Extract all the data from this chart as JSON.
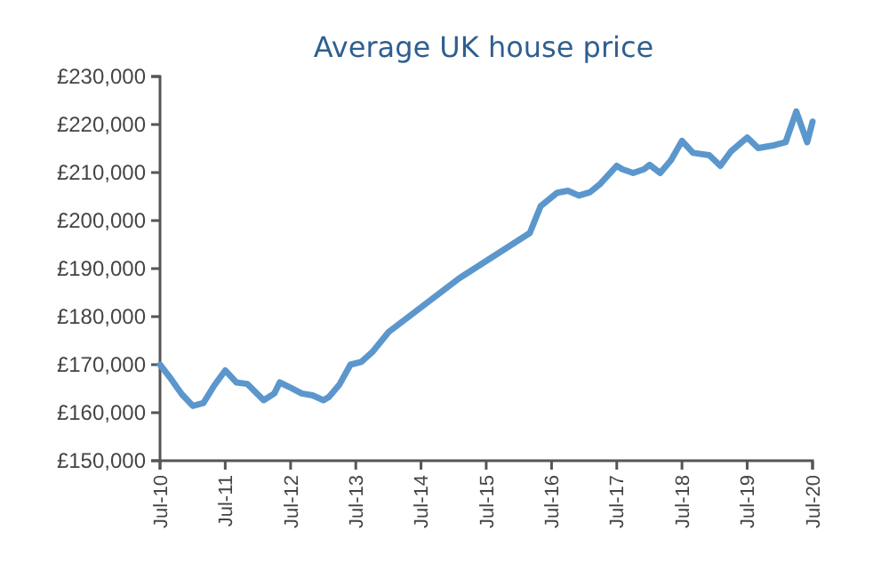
{
  "chart_data": {
    "type": "line",
    "title": "Average UK house price",
    "x": [
      "2010-07",
      "2010-09",
      "2010-11",
      "2011-01",
      "2011-03",
      "2011-05",
      "2011-07",
      "2011-09",
      "2011-11",
      "2012-02",
      "2012-04",
      "2012-05",
      "2012-07",
      "2012-09",
      "2012-11",
      "2013-01",
      "2013-02",
      "2013-04",
      "2013-06",
      "2013-08",
      "2013-10",
      "2014-01",
      "2015-02",
      "2016-03",
      "2016-05",
      "2016-08",
      "2016-10",
      "2016-12",
      "2017-02",
      "2017-04",
      "2017-07",
      "2017-08",
      "2017-10",
      "2017-12",
      "2018-01",
      "2018-03",
      "2018-05",
      "2018-07",
      "2018-09",
      "2018-12",
      "2019-02",
      "2019-04",
      "2019-07",
      "2019-09",
      "2019-12",
      "2020-02",
      "2020-04",
      "2020-06",
      "2020-07"
    ],
    "series": [
      {
        "color": "#5b97cc",
        "values": [
          170000,
          167000,
          163800,
          161400,
          162000,
          165700,
          168800,
          166300,
          166000,
          162600,
          164000,
          166300,
          165200,
          164000,
          163600,
          162600,
          163300,
          165900,
          170000,
          170600,
          172600,
          176800,
          188000,
          197400,
          203000,
          205800,
          206200,
          205200,
          205900,
          207700,
          211400,
          210700,
          209900,
          210700,
          211600,
          209900,
          212600,
          216600,
          214100,
          213600,
          211400,
          214400,
          217300,
          215100,
          215700,
          216300,
          222700,
          216300,
          220600
        ]
      }
    ],
    "xlim": [
      "2010-07",
      "2020-07"
    ],
    "xticks": [
      {
        "value": "2010-07",
        "label": "Jul-10"
      },
      {
        "value": "2011-07",
        "label": "Jul-11"
      },
      {
        "value": "2012-07",
        "label": "Jul-12"
      },
      {
        "value": "2013-07",
        "label": "Jul-13"
      },
      {
        "value": "2014-07",
        "label": "Jul-14"
      },
      {
        "value": "2015-07",
        "label": "Jul-15"
      },
      {
        "value": "2016-07",
        "label": "Jul-16"
      },
      {
        "value": "2017-07",
        "label": "Jul-17"
      },
      {
        "value": "2018-07",
        "label": "Jul-18"
      },
      {
        "value": "2019-07",
        "label": "Jul-19"
      },
      {
        "value": "2020-07",
        "label": "Jul-20"
      }
    ],
    "ylim": [
      150000,
      230000
    ],
    "yticks": [
      {
        "value": 150000,
        "label": "£150,000"
      },
      {
        "value": 160000,
        "label": "£160,000"
      },
      {
        "value": 170000,
        "label": "£170,000"
      },
      {
        "value": 180000,
        "label": "£180,000"
      },
      {
        "value": 190000,
        "label": "£190,000"
      },
      {
        "value": 200000,
        "label": "£200,000"
      },
      {
        "value": 210000,
        "label": "£210,000"
      },
      {
        "value": 220000,
        "label": "£220,000"
      },
      {
        "value": 230000,
        "label": "£230,000"
      }
    ],
    "grid": false,
    "marker": "none",
    "line_style": "solid"
  }
}
